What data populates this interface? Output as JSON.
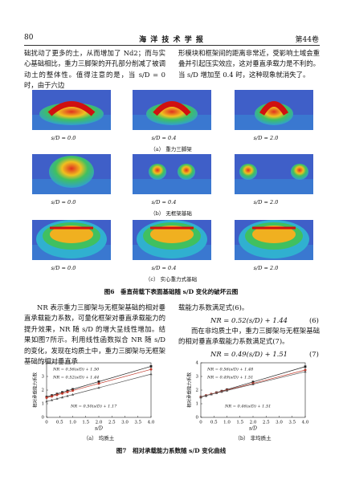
{
  "header": {
    "page_number": "80",
    "journal": "海 洋 技 术 学 报",
    "volume": "第44卷"
  },
  "top_text": {
    "left": "础扰动了更多的土，从而增加了 Nd2；而与实心基础相比，重力三脚架的开孔部分削减了被调动土的整体性。值得注意的是，当 s/D = 0 时，由于六边",
    "right": "形模块和框架间的距离非常近，受影响土域会重叠并引起压实效应，这对垂直承载力是不利的。当 s/D 增加至 0.4 时，这种现象就消失了。"
  },
  "figure6": {
    "rows": [
      {
        "panels": [
          "s/D = 0.0",
          "s/D = 0.4",
          "s/D = 2.0"
        ],
        "subcaption": "（a） 重力三脚架"
      },
      {
        "panels": [
          "s/D = 0.0",
          "s/D = 0.4",
          "s/D = 2.0"
        ],
        "subcaption": "（b） 无框架基础"
      },
      {
        "panels": [
          "s/D = 0.0",
          "s/D = 0.4",
          "s/D = 2.0"
        ],
        "subcaption": "（c） 实心重力式基础"
      }
    ],
    "caption": "图6　垂直荷载下表面基础随 s/D 变化的破坏云图"
  },
  "body": {
    "left": "NR 表示重力三脚架与无框架基础的相对垂直承载能力系数，可量化框架对垂直承载能力的提升效果，NR 随 s/D 的增大呈线性增加。结果如图7所示。利用线性函数拟合 NR 随 s/D 的变化，发现在均质土中，重力三脚架与无框架基础的相对垂直承",
    "right1": "载能力系数满足式(6)。",
    "eq6": {
      "text": "NR = 0.52(s/D) + 1.44",
      "number": "(6)"
    },
    "right2": "而在非均质土中，重力三脚架与无框架基础的相对垂直承载能力系数满足式(7)。",
    "eq7": {
      "text": "NR = 0.49(s/D) + 1.51",
      "number": "(7)"
    }
  },
  "chart_data": [
    {
      "type": "line",
      "subtitle": "（a） 均质土",
      "xlabel": "s/D",
      "ylabel": "相对承载能力系数",
      "x": [
        0,
        0.2,
        0.4,
        0.6,
        0.8,
        1.0,
        2.0,
        4.0
      ],
      "series": [
        {
          "color": "#222222",
          "values": [
            1.5,
            1.61,
            1.72,
            1.84,
            1.95,
            2.06,
            2.62,
            3.74
          ]
        },
        {
          "color": "#c0392b",
          "values": [
            1.44,
            1.54,
            1.65,
            1.75,
            1.86,
            1.96,
            2.48,
            3.52
          ]
        },
        {
          "color": "#555555",
          "values": [
            1.17,
            1.27,
            1.37,
            1.47,
            1.57,
            1.67,
            2.17,
            3.17
          ]
        }
      ],
      "annotations": [
        "NR = 0.56(s/D) + 1.50",
        "NR = 0.52(s/D) + 1.44",
        "NR = 0.50(s/D) + 1.17"
      ],
      "xlim": [
        0,
        4
      ],
      "ylim": [
        0,
        4
      ],
      "xticks": [
        0,
        0.5,
        {
          "value": 1,
          "label": "1.0"
        },
        1.5,
        {
          "value": 2,
          "label": "2.0"
        },
        2.5,
        {
          "value": 3,
          "label": "3.0"
        },
        3.5,
        {
          "value": 4,
          "label": "4.0"
        }
      ],
      "yticks": [
        0,
        1,
        2,
        3,
        4
      ]
    },
    {
      "type": "line",
      "subtitle": "（b） 非均质土",
      "xlabel": "s/D",
      "ylabel": "相对承载能力系数",
      "x": [
        0,
        0.2,
        0.4,
        0.6,
        0.8,
        1.0,
        2.0,
        4.0
      ],
      "series": [
        {
          "color": "#222222",
          "values": [
            1.48,
            1.59,
            1.7,
            1.82,
            1.93,
            2.04,
            2.6,
            3.72
          ]
        },
        {
          "color": "#c0392b",
          "values": [
            1.51,
            1.61,
            1.71,
            1.8,
            1.9,
            2.0,
            2.49,
            3.47
          ]
        },
        {
          "color": "#555555",
          "values": [
            1.51,
            1.6,
            1.69,
            1.79,
            1.88,
            1.97,
            2.43,
            3.35
          ]
        }
      ],
      "annotations": [
        "NR = 0.56(s/D) + 1.48",
        "NR = 0.49(s/D) + 1.51",
        "NR = 0.46(s/D) + 1.51"
      ],
      "xlim": [
        0,
        4
      ],
      "ylim": [
        0,
        4
      ],
      "xticks": [
        0,
        0.5,
        {
          "value": 1,
          "label": "1.0"
        },
        1.5,
        {
          "value": 2,
          "label": "2.0"
        },
        2.5,
        {
          "value": 3,
          "label": "3.0"
        },
        3.5,
        {
          "value": 4,
          "label": "4.0"
        }
      ],
      "yticks": [
        0,
        1,
        2,
        3,
        4
      ]
    }
  ],
  "figure7_caption": "图7　相对承载能力系数随 s/D 变化曲线"
}
